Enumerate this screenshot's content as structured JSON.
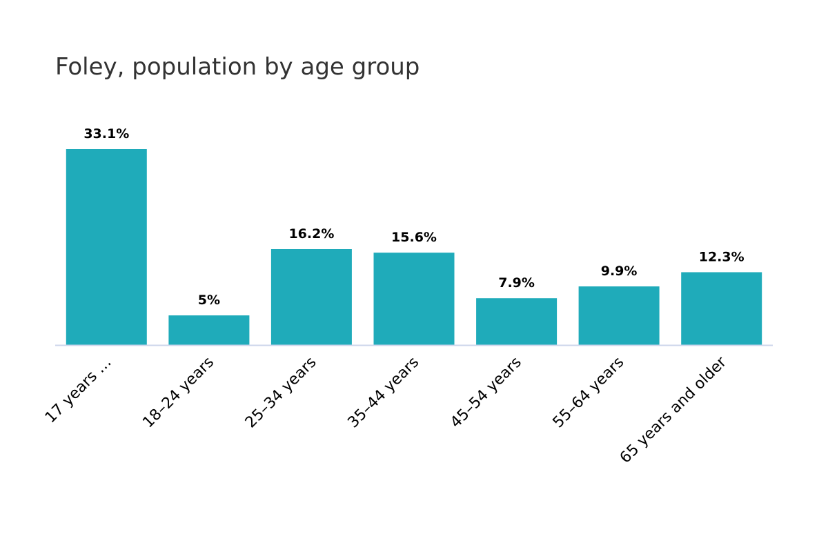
{
  "chart_data": {
    "type": "bar",
    "title": "Foley, population by age group",
    "xlabel": "",
    "ylabel": "",
    "categories": [
      "17 years …",
      "18–24 years",
      "25–34 years",
      "35–44 years",
      "45–54 years",
      "55–64 years",
      "65 years and older"
    ],
    "values": [
      33.1,
      5,
      16.2,
      15.6,
      7.9,
      9.9,
      12.3
    ],
    "value_labels": [
      "33.1%",
      "5%",
      "16.2%",
      "15.6%",
      "7.9%",
      "9.9%",
      "12.3%"
    ],
    "ylim": [
      0,
      33.1
    ],
    "grid": false,
    "legend": "none",
    "colors": {
      "bar": "#1FABBA",
      "axis_line": "#CCD6EB",
      "title": "#333333",
      "label": "#000000"
    }
  }
}
